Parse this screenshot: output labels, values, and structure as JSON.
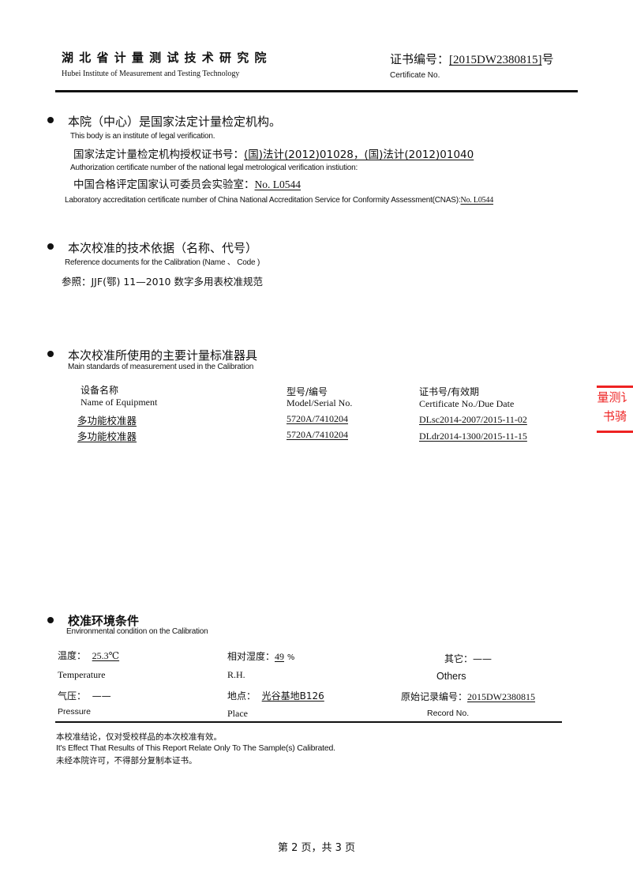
{
  "header": {
    "institute_cn": "湖 北 省 计 量 测 试 技 术 研 究 院",
    "institute_en": "Hubei Institute of Measurement and Testing Technology",
    "cert_label_cn": "证书编号：",
    "cert_number": "[2015DW2380815]",
    "cert_suffix": "号",
    "cert_label_en": "Certificate No."
  },
  "section1": {
    "title_cn": "本院（中心）是国家法定计量检定机构。",
    "title_en": "This body is an institute  of  legal  verification.",
    "auth_label_cn": "国家法定计量检定机构授权证书号：",
    "auth_value": "(国)法计(2012)01028，(国)法计(2012)01040",
    "auth_label_en": "Authorization certificate number of the national legal metrological verification instiution:",
    "cnas_label_cn": "中国合格评定国家认可委员会实验室：",
    "cnas_value": "No. L0544",
    "cnas_label_en": "Laboratory accreditation certificate number of China National Accreditation Service for Conformity Assessment(CNAS):",
    "cnas_value_en": "No. L0544"
  },
  "section2": {
    "title_cn": "本次校准的技术依据（名称、代号）",
    "title_en": "Reference documents for the Calibration (Name 、 Code )",
    "reference": "参照：JJF(鄂) 11—2010 数字多用表校准规范"
  },
  "section3": {
    "title_cn": "本次校准所使用的主要计量标准器具",
    "title_en": "Main standards of measurement used in the Calibration",
    "columns": [
      {
        "cn": "设备名称",
        "en": "Name of Equipment"
      },
      {
        "cn": "型号/编号",
        "en": "Model/Serial No."
      },
      {
        "cn": "证书号/有效期",
        "en": "Certificate No./Due Date"
      }
    ],
    "rows": [
      {
        "name": "多功能校准器",
        "model": "5720A/7410204",
        "cert": "DLsc2014-2007/2015-11-02"
      },
      {
        "name": "多功能校准器",
        "model": "5720A/7410204",
        "cert": "DLdr2014-1300/2015-11-15"
      }
    ]
  },
  "stamp": {
    "line1": "量测讠",
    "line2": "书骑",
    "color": "#e22222"
  },
  "section4": {
    "title_cn": "校准环境条件",
    "title_en": "Environmental condition on the Calibration",
    "temperature_cn": "温度：",
    "temperature_value": "25.3℃",
    "temperature_en": "Temperature",
    "rh_cn": "相对湿度：",
    "rh_value": "49",
    "rh_unit": "%",
    "rh_en": "R.H.",
    "others_cn": "其它：",
    "others_value": "——",
    "others_en": "Others",
    "pressure_cn": "气压：",
    "pressure_value": "——",
    "pressure_en": "Pressure",
    "place_cn": "地点：",
    "place_value": "光谷基地B126",
    "place_en": "Place",
    "record_cn": "原始记录编号：",
    "record_value": "2015DW2380815",
    "record_en": "Record No."
  },
  "notes": [
    "本校准结论，仅对受校样品的本次校准有效。",
    "It's Effect That Results  of This Report Relate Only To The Sample(s) Calibrated.",
    "未经本院许可，不得部分复制本证书。"
  ],
  "footer": {
    "page": "第 2 页，共 3 页"
  }
}
